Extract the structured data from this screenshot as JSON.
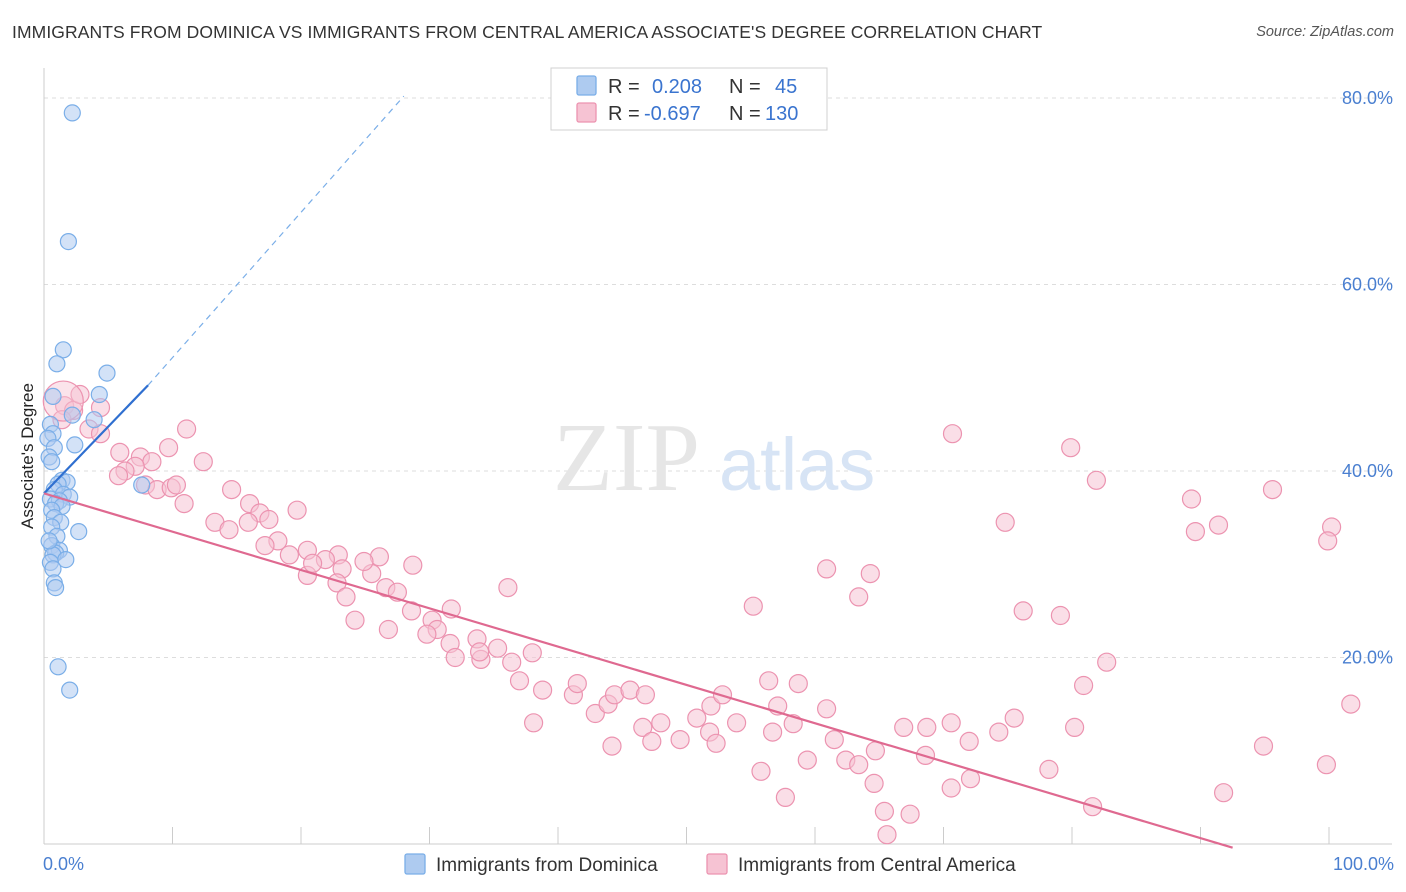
{
  "title": "IMMIGRANTS FROM DOMINICA VS IMMIGRANTS FROM CENTRAL AMERICA ASSOCIATE'S DEGREE CORRELATION CHART",
  "source": "Source: ZipAtlas.com",
  "watermark": {
    "zip": "ZIP",
    "atlas": "atlas"
  },
  "colors": {
    "blue": "#7aaee8",
    "blue_fill": "#aecbf0",
    "blue_line": "#2f6fd0",
    "pink": "#ec93b0",
    "pink_fill": "#f6c3d3",
    "pink_line": "#df6990",
    "axis_text": "#4a7fd0",
    "grid": "#dddddd"
  },
  "legend": {
    "r_label": "R =",
    "n_label": "N =",
    "rows": [
      {
        "r": "0.208",
        "n": "45"
      },
      {
        "r": "-0.697",
        "n": "130"
      }
    ]
  },
  "chart_data": {
    "type": "scatter",
    "title": "IMMIGRANTS FROM DOMINICA VS IMMIGRANTS FROM CENTRAL AMERICA ASSOCIATE'S DEGREE CORRELATION CHART",
    "xlabel": "",
    "ylabel": "Associate's Degree",
    "xlim": [
      0,
      100
    ],
    "ylim": [
      0,
      80
    ],
    "y_ticks": [
      {
        "value": 20,
        "label": "20.0%"
      },
      {
        "value": 40,
        "label": "40.0%"
      },
      {
        "value": 60,
        "label": "60.0%"
      },
      {
        "value": 80,
        "label": "80.0%"
      }
    ],
    "x_tick_labels": [
      {
        "value": 0,
        "label": "0.0%"
      },
      {
        "value": 100,
        "label": "100.0%"
      }
    ],
    "x_minor_ticks": [
      0,
      10,
      20,
      30,
      40,
      50,
      60,
      70,
      80,
      90,
      100
    ],
    "grid": true,
    "legend_position": "bottom",
    "series": [
      {
        "name": "Immigrants from Dominica",
        "color": "blue",
        "R": 0.208,
        "N": 45,
        "trend": {
          "x0": 0,
          "y0": 37.6,
          "x1": 8.1,
          "y1": 49.2,
          "dash_to_x": 28.0,
          "dash_to_y": 80.2
        },
        "points": [
          [
            2.2,
            78.4
          ],
          [
            1.9,
            64.6
          ],
          [
            1.5,
            53.0
          ],
          [
            1.0,
            51.5
          ],
          [
            4.9,
            50.5
          ],
          [
            4.3,
            48.2
          ],
          [
            0.7,
            48.0
          ],
          [
            2.2,
            46.0
          ],
          [
            3.9,
            45.5
          ],
          [
            0.5,
            45.0
          ],
          [
            0.7,
            44.0
          ],
          [
            0.3,
            43.5
          ],
          [
            2.4,
            42.8
          ],
          [
            0.8,
            42.5
          ],
          [
            0.4,
            41.5
          ],
          [
            0.6,
            41.0
          ],
          [
            1.4,
            39.0
          ],
          [
            1.8,
            38.8
          ],
          [
            1.1,
            38.6
          ],
          [
            7.6,
            38.5
          ],
          [
            0.8,
            38.0
          ],
          [
            1.5,
            37.5
          ],
          [
            2.0,
            37.2
          ],
          [
            0.5,
            37.0
          ],
          [
            1.2,
            36.8
          ],
          [
            0.9,
            36.5
          ],
          [
            1.4,
            36.2
          ],
          [
            0.6,
            35.8
          ],
          [
            0.8,
            35.0
          ],
          [
            1.3,
            34.5
          ],
          [
            0.6,
            34.0
          ],
          [
            2.7,
            33.5
          ],
          [
            1.0,
            33.0
          ],
          [
            0.6,
            32.0
          ],
          [
            1.2,
            31.5
          ],
          [
            0.9,
            31.2
          ],
          [
            0.7,
            31.0
          ],
          [
            1.7,
            30.5
          ],
          [
            0.5,
            30.2
          ],
          [
            0.7,
            29.5
          ],
          [
            0.8,
            28.0
          ],
          [
            0.9,
            27.5
          ],
          [
            1.1,
            19.0
          ],
          [
            2.0,
            16.5
          ],
          [
            0.4,
            32.5
          ]
        ]
      },
      {
        "name": "Immigrants from Central America",
        "color": "pink",
        "R": -0.697,
        "N": 130,
        "trend": {
          "x0": 0,
          "y0": 37.6,
          "x1": 92.5,
          "y1": -0.4
        },
        "points": [
          [
            1.6,
            47.0
          ],
          [
            2.3,
            46.5
          ],
          [
            1.4,
            45.5
          ],
          [
            3.5,
            44.5
          ],
          [
            4.4,
            44.0
          ],
          [
            5.9,
            42.0
          ],
          [
            7.5,
            41.5
          ],
          [
            8.4,
            41.0
          ],
          [
            7.1,
            40.5
          ],
          [
            6.3,
            40.0
          ],
          [
            5.8,
            39.5
          ],
          [
            7.9,
            38.5
          ],
          [
            8.8,
            38.0
          ],
          [
            9.9,
            38.2
          ],
          [
            10.3,
            38.5
          ],
          [
            12.4,
            41.0
          ],
          [
            14.6,
            38.0
          ],
          [
            16.0,
            36.5
          ],
          [
            16.8,
            35.5
          ],
          [
            17.5,
            34.8
          ],
          [
            13.3,
            34.5
          ],
          [
            14.4,
            33.7
          ],
          [
            10.9,
            36.5
          ],
          [
            18.2,
            32.5
          ],
          [
            17.2,
            32.0
          ],
          [
            19.1,
            31.0
          ],
          [
            20.5,
            31.5
          ],
          [
            22.9,
            31.0
          ],
          [
            21.9,
            30.5
          ],
          [
            23.2,
            29.5
          ],
          [
            25.5,
            29.0
          ],
          [
            20.5,
            28.8
          ],
          [
            22.8,
            28.0
          ],
          [
            26.6,
            27.5
          ],
          [
            27.5,
            27.0
          ],
          [
            23.5,
            26.5
          ],
          [
            28.6,
            25.0
          ],
          [
            30.2,
            24.0
          ],
          [
            24.2,
            24.0
          ],
          [
            26.8,
            23.0
          ],
          [
            30.6,
            23.0
          ],
          [
            29.8,
            22.5
          ],
          [
            31.6,
            21.5
          ],
          [
            33.7,
            22.0
          ],
          [
            32.0,
            20.0
          ],
          [
            34.0,
            19.8
          ],
          [
            35.3,
            21.0
          ],
          [
            33.9,
            20.6
          ],
          [
            36.4,
            19.5
          ],
          [
            38.0,
            20.5
          ],
          [
            37.0,
            17.5
          ],
          [
            38.8,
            16.5
          ],
          [
            41.2,
            16.0
          ],
          [
            38.1,
            13.0
          ],
          [
            41.5,
            17.2
          ],
          [
            42.9,
            14.0
          ],
          [
            43.9,
            15.0
          ],
          [
            44.4,
            16.0
          ],
          [
            45.6,
            16.5
          ],
          [
            46.8,
            16.0
          ],
          [
            46.6,
            12.5
          ],
          [
            48.0,
            13.0
          ],
          [
            47.3,
            11.0
          ],
          [
            50.8,
            13.5
          ],
          [
            51.8,
            12.0
          ],
          [
            51.9,
            14.8
          ],
          [
            53.9,
            13.0
          ],
          [
            52.8,
            16.0
          ],
          [
            56.7,
            12.0
          ],
          [
            58.7,
            17.2
          ],
          [
            60.9,
            14.5
          ],
          [
            62.4,
            9.0
          ],
          [
            63.4,
            8.5
          ],
          [
            64.7,
            10.0
          ],
          [
            66.9,
            12.5
          ],
          [
            68.7,
            12.5
          ],
          [
            68.6,
            9.5
          ],
          [
            70.6,
            13.0
          ],
          [
            72.0,
            11.0
          ],
          [
            70.6,
            6.0
          ],
          [
            72.1,
            7.0
          ],
          [
            74.3,
            12.0
          ],
          [
            75.5,
            13.5
          ],
          [
            78.2,
            8.0
          ],
          [
            80.2,
            12.5
          ],
          [
            81.6,
            4.0
          ],
          [
            82.7,
            19.5
          ],
          [
            79.1,
            24.5
          ],
          [
            76.2,
            25.0
          ],
          [
            74.8,
            34.5
          ],
          [
            79.9,
            42.5
          ],
          [
            81.9,
            39.0
          ],
          [
            70.7,
            44.0
          ],
          [
            63.4,
            26.5
          ],
          [
            64.3,
            29.0
          ],
          [
            55.2,
            25.5
          ],
          [
            60.9,
            29.5
          ],
          [
            80.9,
            17.0
          ],
          [
            89.6,
            33.5
          ],
          [
            91.4,
            34.2
          ],
          [
            89.3,
            37.0
          ],
          [
            100.2,
            34.0
          ],
          [
            101.7,
            15.0
          ],
          [
            99.8,
            8.5
          ],
          [
            94.9,
            10.5
          ],
          [
            91.8,
            5.5
          ],
          [
            99.9,
            32.5
          ],
          [
            95.6,
            38.0
          ],
          [
            56.4,
            17.5
          ],
          [
            57.1,
            14.8
          ],
          [
            65.4,
            3.5
          ],
          [
            65.6,
            1.0
          ],
          [
            57.7,
            5.0
          ],
          [
            55.8,
            7.8
          ],
          [
            59.4,
            9.0
          ],
          [
            61.5,
            11.2
          ],
          [
            64.6,
            6.5
          ],
          [
            67.4,
            3.2
          ],
          [
            52.3,
            10.8
          ],
          [
            44.2,
            10.5
          ],
          [
            49.5,
            11.2
          ],
          [
            58.3,
            12.9
          ],
          [
            36.1,
            27.5
          ],
          [
            31.7,
            25.2
          ],
          [
            28.7,
            29.9
          ],
          [
            26.1,
            30.8
          ],
          [
            24.9,
            30.3
          ],
          [
            20.9,
            30.1
          ],
          [
            15.9,
            34.5
          ],
          [
            19.7,
            35.8
          ],
          [
            11.1,
            44.5
          ],
          [
            9.7,
            42.5
          ],
          [
            4.4,
            46.8
          ],
          [
            2.8,
            48.2
          ]
        ]
      }
    ]
  },
  "bottom_legend": [
    {
      "label": "Immigrants from Dominica"
    },
    {
      "label": "Immigrants from Central America"
    }
  ]
}
